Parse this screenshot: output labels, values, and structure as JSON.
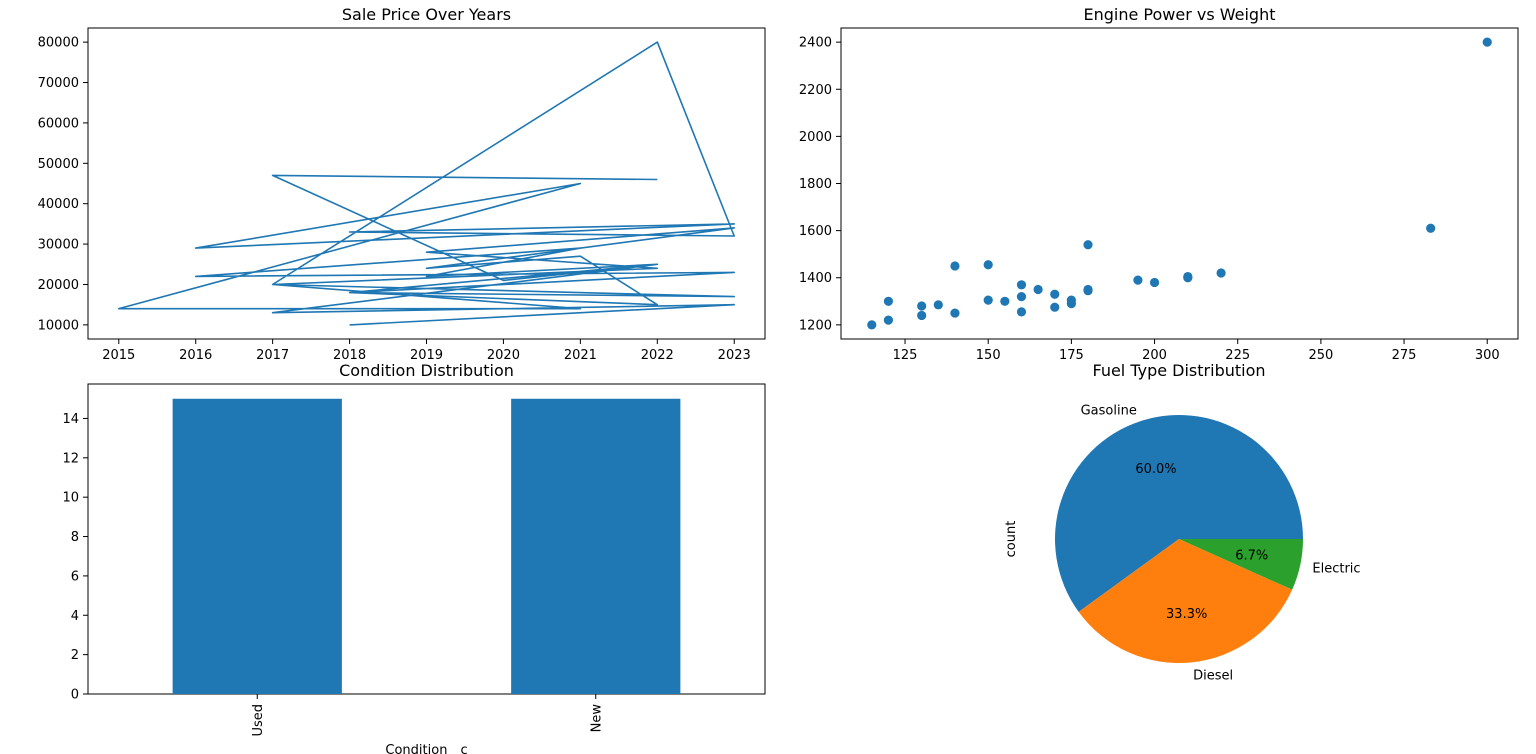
{
  "chart_data": [
    {
      "id": "sale-price",
      "type": "line",
      "title": "Sale Price Over Years",
      "xlabel": "",
      "ylabel": "",
      "xlim": [
        2014.6,
        2023.4
      ],
      "ylim": [
        6500,
        83500
      ],
      "xticks": [
        2015,
        2016,
        2017,
        2018,
        2019,
        2020,
        2021,
        2022,
        2023
      ],
      "yticks": [
        10000,
        20000,
        30000,
        40000,
        50000,
        60000,
        70000,
        80000
      ],
      "color": "#1f77b4",
      "points": [
        [
          2018,
          10000
        ],
        [
          2023,
          15000
        ],
        [
          2017,
          13000
        ],
        [
          2022,
          25000
        ],
        [
          2019,
          22000
        ],
        [
          2021,
          29000
        ],
        [
          2016,
          22000
        ],
        [
          2023,
          23000
        ],
        [
          2018,
          18000
        ],
        [
          2023,
          17000
        ],
        [
          2017,
          20000
        ],
        [
          2022,
          80000
        ],
        [
          2023,
          32000
        ],
        [
          2018,
          33000
        ],
        [
          2023,
          35000
        ],
        [
          2016,
          29000
        ],
        [
          2021,
          45000
        ],
        [
          2015,
          14000
        ],
        [
          2021,
          14000
        ],
        [
          2017,
          20000
        ],
        [
          2022,
          24000
        ],
        [
          2019,
          28000
        ],
        [
          2023,
          34000
        ],
        [
          2019,
          24000
        ],
        [
          2021,
          27000
        ],
        [
          2022,
          15000
        ],
        [
          2018,
          18000
        ],
        [
          2022,
          25000
        ],
        [
          2020,
          21000
        ],
        [
          2017,
          47000
        ],
        [
          2022,
          46000
        ]
      ]
    },
    {
      "id": "power-weight",
      "type": "scatter",
      "title": "Engine Power vs Weight",
      "xlabel": "",
      "ylabel": "",
      "xlim": [
        105.75,
        309.25
      ],
      "ylim": [
        1140,
        2460
      ],
      "xticks": [
        125,
        150,
        175,
        200,
        225,
        250,
        275,
        300
      ],
      "yticks": [
        1200,
        1400,
        1600,
        1800,
        2000,
        2200,
        2400
      ],
      "color": "#1f77b4",
      "points": [
        [
          115,
          1200
        ],
        [
          120,
          1220
        ],
        [
          120,
          1300
        ],
        [
          130,
          1240
        ],
        [
          130,
          1280
        ],
        [
          135,
          1285
        ],
        [
          140,
          1250
        ],
        [
          140,
          1450
        ],
        [
          150,
          1305
        ],
        [
          150,
          1455
        ],
        [
          155,
          1300
        ],
        [
          160,
          1255
        ],
        [
          160,
          1320
        ],
        [
          160,
          1370
        ],
        [
          165,
          1350
        ],
        [
          170,
          1275
        ],
        [
          170,
          1330
        ],
        [
          175,
          1290
        ],
        [
          175,
          1305
        ],
        [
          180,
          1345
        ],
        [
          180,
          1350
        ],
        [
          180,
          1540
        ],
        [
          195,
          1390
        ],
        [
          200,
          1380
        ],
        [
          210,
          1400
        ],
        [
          210,
          1405
        ],
        [
          220,
          1420
        ],
        [
          283,
          1610
        ],
        [
          300,
          2400
        ]
      ]
    },
    {
      "id": "condition",
      "type": "bar",
      "title": "Condition Distribution",
      "xlabel": "Condition__c",
      "ylabel": "",
      "categories": [
        "Used",
        "New"
      ],
      "values": [
        15,
        15
      ],
      "ylim": [
        0,
        15.75
      ],
      "yticks": [
        0,
        2,
        4,
        6,
        8,
        10,
        12,
        14
      ],
      "color": "#1f77b4"
    },
    {
      "id": "fuel-type",
      "type": "pie",
      "title": "Fuel Type Distribution",
      "ylabel": "count",
      "slices": [
        {
          "label": "Gasoline",
          "value": 60.0,
          "pct_label": "60.0%",
          "color": "#1f77b4"
        },
        {
          "label": "Diesel",
          "value": 33.3,
          "pct_label": "33.3%",
          "color": "#ff7f0e"
        },
        {
          "label": "Electric",
          "value": 6.7,
          "pct_label": "6.7%",
          "color": "#2ca02c"
        }
      ]
    }
  ]
}
